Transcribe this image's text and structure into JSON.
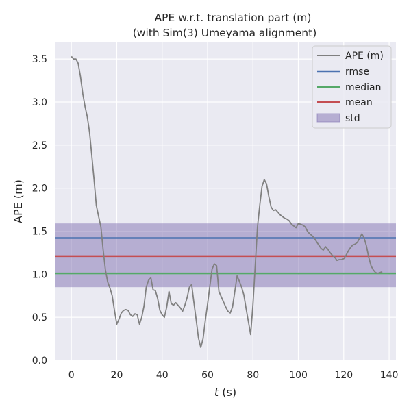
{
  "chart_data": {
    "type": "line",
    "title_line1": "APE w.r.t. translation part (m)",
    "title_line2": "(with Sim(3) Umeyama alignment)",
    "xlabel_var": "t",
    "xlabel_unit": " (s)",
    "ylabel": "APE (m)",
    "xlim": [
      -7,
      143
    ],
    "ylim": [
      0,
      3.7
    ],
    "xticks": [
      0,
      20,
      40,
      60,
      80,
      100,
      120,
      140
    ],
    "yticks": [
      0.0,
      0.5,
      1.0,
      1.5,
      2.0,
      2.5,
      3.0,
      3.5
    ],
    "ytick_labels": [
      "0.0",
      "0.5",
      "1.0",
      "1.5",
      "2.0",
      "2.5",
      "3.0",
      "3.5"
    ],
    "grid": true,
    "legend_position": "top-right",
    "colors": {
      "background": "#eaeaf2",
      "grid": "#ffffff",
      "ape": "#808080",
      "rmse": "#4c72b0",
      "median": "#55a868",
      "mean": "#c44e52",
      "std": "#8172b2"
    },
    "stats": {
      "rmse": 1.42,
      "median": 1.01,
      "mean": 1.21,
      "std_low": 0.85,
      "std_high": 1.59
    },
    "legend": [
      "APE (m)",
      "rmse",
      "median",
      "mean",
      "std"
    ],
    "series": [
      {
        "name": "APE (m)",
        "x": [
          0,
          1,
          2,
          3,
          4,
          5,
          6,
          7,
          8,
          9,
          10,
          11,
          12,
          13,
          14,
          15,
          16,
          17,
          18,
          19,
          20,
          21,
          22,
          23,
          24,
          25,
          26,
          27,
          28,
          29,
          30,
          31,
          32,
          33,
          34,
          35,
          36,
          37,
          38,
          39,
          40,
          41,
          42,
          43,
          44,
          45,
          46,
          47,
          48,
          49,
          50,
          51,
          52,
          53,
          54,
          55,
          56,
          57,
          58,
          59,
          60,
          61,
          62,
          63,
          64,
          65,
          66,
          67,
          68,
          69,
          70,
          71,
          72,
          73,
          74,
          75,
          76,
          77,
          78,
          79,
          80,
          81,
          82,
          83,
          84,
          85,
          86,
          87,
          88,
          89,
          90,
          91,
          92,
          93,
          94,
          95,
          96,
          97,
          98,
          99,
          100,
          101,
          102,
          103,
          104,
          105,
          106,
          107,
          108,
          109,
          110,
          111,
          112,
          113,
          114,
          115,
          116,
          117,
          118,
          119,
          120,
          121,
          122,
          123,
          124,
          125,
          126,
          127,
          128,
          129,
          130,
          131,
          132,
          133,
          134,
          135,
          136,
          137
        ],
        "y": [
          3.53,
          3.5,
          3.5,
          3.45,
          3.3,
          3.1,
          2.95,
          2.83,
          2.65,
          2.38,
          2.1,
          1.8,
          1.67,
          1.55,
          1.28,
          1.05,
          0.91,
          0.84,
          0.75,
          0.58,
          0.42,
          0.48,
          0.55,
          0.58,
          0.59,
          0.58,
          0.53,
          0.51,
          0.54,
          0.53,
          0.42,
          0.5,
          0.63,
          0.85,
          0.93,
          0.96,
          0.82,
          0.81,
          0.72,
          0.58,
          0.53,
          0.5,
          0.62,
          0.8,
          0.66,
          0.64,
          0.67,
          0.64,
          0.61,
          0.57,
          0.64,
          0.73,
          0.85,
          0.88,
          0.67,
          0.47,
          0.26,
          0.15,
          0.25,
          0.46,
          0.65,
          0.86,
          1.06,
          1.12,
          1.1,
          0.8,
          0.74,
          0.68,
          0.62,
          0.57,
          0.55,
          0.62,
          0.8,
          0.98,
          0.92,
          0.85,
          0.76,
          0.6,
          0.45,
          0.3,
          0.65,
          1.1,
          1.55,
          1.8,
          2.02,
          2.1,
          2.05,
          1.9,
          1.78,
          1.74,
          1.75,
          1.72,
          1.69,
          1.67,
          1.65,
          1.64,
          1.62,
          1.58,
          1.56,
          1.54,
          1.59,
          1.58,
          1.57,
          1.55,
          1.5,
          1.47,
          1.45,
          1.42,
          1.38,
          1.34,
          1.3,
          1.28,
          1.32,
          1.29,
          1.25,
          1.22,
          1.2,
          1.16,
          1.17,
          1.17,
          1.18,
          1.22,
          1.27,
          1.31,
          1.34,
          1.35,
          1.37,
          1.42,
          1.47,
          1.42,
          1.33,
          1.2,
          1.1,
          1.05,
          1.02,
          1.01,
          1.02,
          1.03
        ]
      }
    ]
  }
}
